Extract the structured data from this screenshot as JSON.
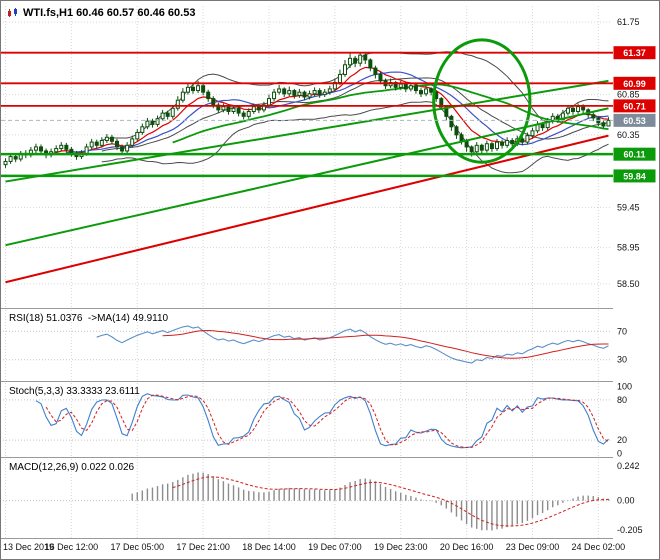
{
  "window": {
    "title": "WTI.fs,H1 60.46 60.57 60.46 60.53"
  },
  "colors": {
    "background": "#ffffff",
    "candle_outline": "#0d4f0d",
    "candle_up_fill": "#ffffff",
    "candle_down_fill": "#0d4f0d",
    "red_line": "#dd0000",
    "green_line": "#0a9a0a",
    "blue_line": "#3c50c8",
    "bollinger": "#4a4a4a",
    "grid": "#d8d8d8",
    "axis_text": "#111111",
    "price_badge": "#7d8b9a",
    "rsi_line": "#5b8fc9",
    "stoch_line": "#3f7fd0",
    "signal_red": "#d02020",
    "macd_hist": "#8c8c8c"
  },
  "chart_data": {
    "type": "candlestick",
    "symbol": "WTI.fs",
    "timeframe": "H1",
    "x_labels": [
      "13 Dec 2019",
      "16 Dec 12:00",
      "17 Dec 05:00",
      "17 Dec 21:00",
      "18 Dec 14:00",
      "19 Dec 07:00",
      "19 Dec 23:00",
      "20 Dec 16:00",
      "23 Dec 09:00",
      "24 Dec 02:00"
    ],
    "x_label_bars": [
      0,
      13,
      26,
      39,
      52,
      65,
      78,
      91,
      104,
      117
    ],
    "candles": [
      [
        59.98,
        60.06,
        59.94,
        60.02
      ],
      [
        60.02,
        60.11,
        59.99,
        60.08
      ],
      [
        60.08,
        60.12,
        60.01,
        60.05
      ],
      [
        60.05,
        60.15,
        60.02,
        60.12
      ],
      [
        60.12,
        60.16,
        60.06,
        60.1
      ],
      [
        60.1,
        60.2,
        60.07,
        60.16
      ],
      [
        60.16,
        60.24,
        60.12,
        60.2
      ],
      [
        60.2,
        60.23,
        60.11,
        60.15
      ],
      [
        60.15,
        60.18,
        60.06,
        60.1
      ],
      [
        60.1,
        60.18,
        60.07,
        60.14
      ],
      [
        60.14,
        60.22,
        60.11,
        60.18
      ],
      [
        60.18,
        60.26,
        60.15,
        60.22
      ],
      [
        60.22,
        60.25,
        60.13,
        60.17
      ],
      [
        60.17,
        60.2,
        60.08,
        60.12
      ],
      [
        60.12,
        60.15,
        60.04,
        60.08
      ],
      [
        60.08,
        60.16,
        60.05,
        60.12
      ],
      [
        60.12,
        60.24,
        60.09,
        60.2
      ],
      [
        60.2,
        60.3,
        60.17,
        60.26
      ],
      [
        60.26,
        60.29,
        60.18,
        60.22
      ],
      [
        60.22,
        60.32,
        60.19,
        60.28
      ],
      [
        60.28,
        60.36,
        60.25,
        60.32
      ],
      [
        60.32,
        60.35,
        60.23,
        60.27
      ],
      [
        60.27,
        60.3,
        60.16,
        60.2
      ],
      [
        60.2,
        60.23,
        60.11,
        60.15
      ],
      [
        60.15,
        60.26,
        60.12,
        60.22
      ],
      [
        60.22,
        60.34,
        60.19,
        60.3
      ],
      [
        60.3,
        60.42,
        60.27,
        60.38
      ],
      [
        60.38,
        60.49,
        60.35,
        60.45
      ],
      [
        60.45,
        60.56,
        60.42,
        60.52
      ],
      [
        60.52,
        60.55,
        60.44,
        60.48
      ],
      [
        60.48,
        60.59,
        60.45,
        60.55
      ],
      [
        60.55,
        60.66,
        60.52,
        60.62
      ],
      [
        60.62,
        60.65,
        60.54,
        60.58
      ],
      [
        60.58,
        60.72,
        60.55,
        60.68
      ],
      [
        60.68,
        60.83,
        60.65,
        60.78
      ],
      [
        60.78,
        60.93,
        60.75,
        60.88
      ],
      [
        60.88,
        61.0,
        60.85,
        60.94
      ],
      [
        60.94,
        60.98,
        60.86,
        60.9
      ],
      [
        60.9,
        61.02,
        60.87,
        60.96
      ],
      [
        60.96,
        60.99,
        60.84,
        60.88
      ],
      [
        60.88,
        60.91,
        60.76,
        60.8
      ],
      [
        60.8,
        60.83,
        60.68,
        60.72
      ],
      [
        60.72,
        60.75,
        60.62,
        60.66
      ],
      [
        60.66,
        60.74,
        60.63,
        60.7
      ],
      [
        60.7,
        60.73,
        60.6,
        60.64
      ],
      [
        60.64,
        60.72,
        60.61,
        60.68
      ],
      [
        60.68,
        60.71,
        60.58,
        60.62
      ],
      [
        60.62,
        60.65,
        60.54,
        60.58
      ],
      [
        60.58,
        60.68,
        60.55,
        60.64
      ],
      [
        60.64,
        60.74,
        60.61,
        60.7
      ],
      [
        60.7,
        60.73,
        60.62,
        60.66
      ],
      [
        60.66,
        60.76,
        60.63,
        60.72
      ],
      [
        60.72,
        60.85,
        60.69,
        60.8
      ],
      [
        60.8,
        60.92,
        60.77,
        60.88
      ],
      [
        60.88,
        60.97,
        60.85,
        60.92
      ],
      [
        60.92,
        60.94,
        60.82,
        60.86
      ],
      [
        60.86,
        60.95,
        60.83,
        60.9
      ],
      [
        60.9,
        60.92,
        60.8,
        60.84
      ],
      [
        60.84,
        60.92,
        60.81,
        60.88
      ],
      [
        60.88,
        60.9,
        60.78,
        60.82
      ],
      [
        60.82,
        60.9,
        60.79,
        60.86
      ],
      [
        60.86,
        60.94,
        60.83,
        60.9
      ],
      [
        60.9,
        60.93,
        60.81,
        60.85
      ],
      [
        60.85,
        60.92,
        60.82,
        60.88
      ],
      [
        60.88,
        60.96,
        60.85,
        60.92
      ],
      [
        60.92,
        61.05,
        60.89,
        61.0
      ],
      [
        61.0,
        61.16,
        60.97,
        61.1
      ],
      [
        61.1,
        61.28,
        61.07,
        61.22
      ],
      [
        61.22,
        61.37,
        61.18,
        61.3
      ],
      [
        61.3,
        61.33,
        61.19,
        61.24
      ],
      [
        61.24,
        61.37,
        61.2,
        61.34
      ],
      [
        61.34,
        61.36,
        61.23,
        61.28
      ],
      [
        61.28,
        61.3,
        61.14,
        61.18
      ],
      [
        61.18,
        61.21,
        61.05,
        61.1
      ],
      [
        61.1,
        61.13,
        60.98,
        61.02
      ],
      [
        61.02,
        61.05,
        60.92,
        60.96
      ],
      [
        60.96,
        61.05,
        60.93,
        61.0
      ],
      [
        61.0,
        61.02,
        60.9,
        60.94
      ],
      [
        60.94,
        61.02,
        60.91,
        60.98
      ],
      [
        60.98,
        61.0,
        60.88,
        60.92
      ],
      [
        60.92,
        61.0,
        60.89,
        60.96
      ],
      [
        60.96,
        60.98,
        60.86,
        60.9
      ],
      [
        60.9,
        60.93,
        60.82,
        60.86
      ],
      [
        60.86,
        60.96,
        60.83,
        60.92
      ],
      [
        60.92,
        60.94,
        60.84,
        60.88
      ],
      [
        60.88,
        60.9,
        60.76,
        60.8
      ],
      [
        60.8,
        60.82,
        60.66,
        60.7
      ],
      [
        60.7,
        60.72,
        60.53,
        60.58
      ],
      [
        60.58,
        60.6,
        60.4,
        60.45
      ],
      [
        60.45,
        60.47,
        60.3,
        60.35
      ],
      [
        60.35,
        60.38,
        60.23,
        60.28
      ],
      [
        60.28,
        60.3,
        60.14,
        60.2
      ],
      [
        60.2,
        60.22,
        60.08,
        60.14
      ],
      [
        60.14,
        60.26,
        60.1,
        60.22
      ],
      [
        60.22,
        60.24,
        60.12,
        60.16
      ],
      [
        60.16,
        60.28,
        60.13,
        60.24
      ],
      [
        60.24,
        60.26,
        60.14,
        60.18
      ],
      [
        60.18,
        60.3,
        60.15,
        60.26
      ],
      [
        60.26,
        60.29,
        60.18,
        60.22
      ],
      [
        60.22,
        60.32,
        60.19,
        60.28
      ],
      [
        60.28,
        60.31,
        60.2,
        60.24
      ],
      [
        60.24,
        60.34,
        60.21,
        60.3
      ],
      [
        60.3,
        60.33,
        60.22,
        60.26
      ],
      [
        60.26,
        60.38,
        60.23,
        60.34
      ],
      [
        60.34,
        60.44,
        60.31,
        60.4
      ],
      [
        60.4,
        60.52,
        60.37,
        60.48
      ],
      [
        60.48,
        60.51,
        60.4,
        60.44
      ],
      [
        60.44,
        60.56,
        60.41,
        60.52
      ],
      [
        60.52,
        60.62,
        60.49,
        60.58
      ],
      [
        60.58,
        60.61,
        60.5,
        60.54
      ],
      [
        60.54,
        60.66,
        60.51,
        60.62
      ],
      [
        60.62,
        60.72,
        60.59,
        60.68
      ],
      [
        60.68,
        60.71,
        60.6,
        60.64
      ],
      [
        60.64,
        60.74,
        60.61,
        60.7
      ],
      [
        60.7,
        60.73,
        60.62,
        60.66
      ],
      [
        60.66,
        60.68,
        60.56,
        60.6
      ],
      [
        60.6,
        60.63,
        60.52,
        60.56
      ],
      [
        60.56,
        60.58,
        60.46,
        60.5
      ],
      [
        60.5,
        60.53,
        60.43,
        60.46
      ],
      [
        60.46,
        60.57,
        60.46,
        60.53
      ]
    ],
    "main": {
      "ylim": [
        58.2,
        61.95
      ],
      "yticks": [
        61.75,
        60.85,
        60.35,
        59.45,
        58.95,
        58.5
      ],
      "levels": [
        {
          "price": 61.37,
          "color": "red"
        },
        {
          "price": 60.99,
          "color": "red"
        },
        {
          "price": 60.71,
          "color": "red"
        },
        {
          "price": 60.11,
          "color": "green"
        },
        {
          "price": 59.84,
          "color": "green"
        }
      ],
      "current_price": 60.53,
      "trendlines": [
        {
          "from": [
            0,
            58.52
          ],
          "to": [
            119,
            60.34
          ],
          "color": "red"
        },
        {
          "from": [
            0,
            58.98
          ],
          "to": [
            119,
            60.68
          ],
          "color": "green"
        },
        {
          "from": [
            0,
            59.77
          ],
          "to": [
            119,
            61.02
          ],
          "color": "green"
        }
      ],
      "ellipse": {
        "bar": 94,
        "price": 60.77,
        "rx_bars": 9.5,
        "ry_price": 0.76
      },
      "overlays": [
        {
          "kind": "bollinger",
          "period": 20,
          "dev": 2,
          "color": "bollinger"
        },
        {
          "kind": "ema",
          "period": 8,
          "color": "red"
        },
        {
          "kind": "sma",
          "period": 13,
          "color": "blue"
        },
        {
          "kind": "sma",
          "period": 34,
          "color": "green"
        }
      ]
    },
    "rsi": {
      "label": "RSI(18) 51.0376  ->MA(14) 49.9110",
      "period": 18,
      "ma_period": 14,
      "value": 51.0376,
      "ma_value": 49.911,
      "levels": [
        70,
        30
      ],
      "yticks": [
        70,
        30
      ],
      "ytick_labels": [
        "70",
        "30"
      ],
      "ylim": [
        0,
        100
      ]
    },
    "stoch": {
      "label": "Stoch(5,3,3) 33.3333 23.6111",
      "k_period": 5,
      "slowing": 3,
      "d_period": 3,
      "value_k": 33.3333,
      "value_d": 23.6111,
      "levels": [
        80,
        20
      ],
      "yticks": [
        100,
        80,
        20,
        0
      ],
      "ytick_labels": [
        "100",
        "80",
        "20",
        "0"
      ],
      "ylim": [
        -5,
        105
      ]
    },
    "macd": {
      "label": "MACD(12,26,9) 0.022 0.026",
      "fast": 12,
      "slow": 26,
      "signal": 9,
      "value": 0.022,
      "signal_value": 0.026,
      "yticks": [
        0.242,
        0,
        -0.205
      ],
      "ytick_labels": [
        "0.242",
        "0.00",
        "-0.205"
      ],
      "ylim": [
        -0.26,
        0.29
      ]
    }
  }
}
